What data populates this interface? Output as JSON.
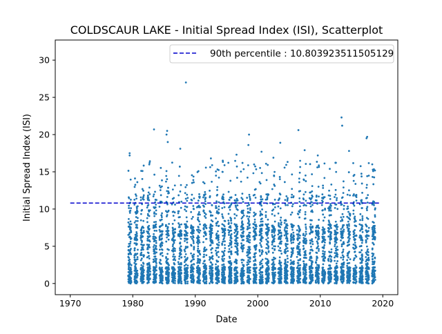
{
  "chart_data": {
    "type": "scatter",
    "title": "COLDSCAUR LAKE - Initial Spread Index (ISI), Scatterplot",
    "xlabel": "Date",
    "ylabel": "Initial Spread Index (ISI)",
    "xlim": [
      1967.6,
      2022.4
    ],
    "ylim": [
      -1.5,
      32.7
    ],
    "xticks": [
      1970,
      1980,
      1990,
      2000,
      2010,
      2020
    ],
    "yticks": [
      0,
      5,
      10,
      15,
      20,
      25,
      30
    ],
    "x_axis_kind": "year",
    "grid": false,
    "legend": {
      "position": "top-right"
    },
    "series": [
      {
        "name": "",
        "kind": "scatter",
        "color": "#1f77b4",
        "season_months": "April-October each year",
        "year_range": [
          1979,
          2018
        ],
        "highlights": [
          {
            "x": 1979.5,
            "y": 17.5
          },
          {
            "x": 1979.5,
            "y": 17.2
          },
          {
            "x": 1983.4,
            "y": 20.7
          },
          {
            "x": 1985.5,
            "y": 20.5
          },
          {
            "x": 1985.4,
            "y": 20.0
          },
          {
            "x": 1985.6,
            "y": 19.0
          },
          {
            "x": 1987.6,
            "y": 18.1
          },
          {
            "x": 1988.5,
            "y": 27.0
          },
          {
            "x": 1998.6,
            "y": 20.0
          },
          {
            "x": 1998.5,
            "y": 18.6
          },
          {
            "x": 2003.6,
            "y": 18.9
          },
          {
            "x": 2006.5,
            "y": 20.6
          },
          {
            "x": 2013.4,
            "y": 22.3
          },
          {
            "x": 2013.5,
            "y": 21.2
          },
          {
            "x": 2017.5,
            "y": 19.7
          },
          {
            "x": 2017.4,
            "y": 19.5
          },
          {
            "x": 1996.6,
            "y": 17.3
          },
          {
            "x": 2000.6,
            "y": 17.7
          },
          {
            "x": 2007.5,
            "y": 17.9
          },
          {
            "x": 2014.6,
            "y": 17.8
          },
          {
            "x": 2009.6,
            "y": 17.2
          },
          {
            "x": 1992.5,
            "y": 16.8
          },
          {
            "x": 1994.4,
            "y": 16.5
          },
          {
            "x": 2002.5,
            "y": 16.9
          }
        ]
      },
      {
        "name": "90th percentile : 10.803923511505129",
        "kind": "hline",
        "color": "#0000cc",
        "y": 10.803923511505129,
        "x_range": [
          1970,
          2019.5
        ]
      }
    ]
  }
}
